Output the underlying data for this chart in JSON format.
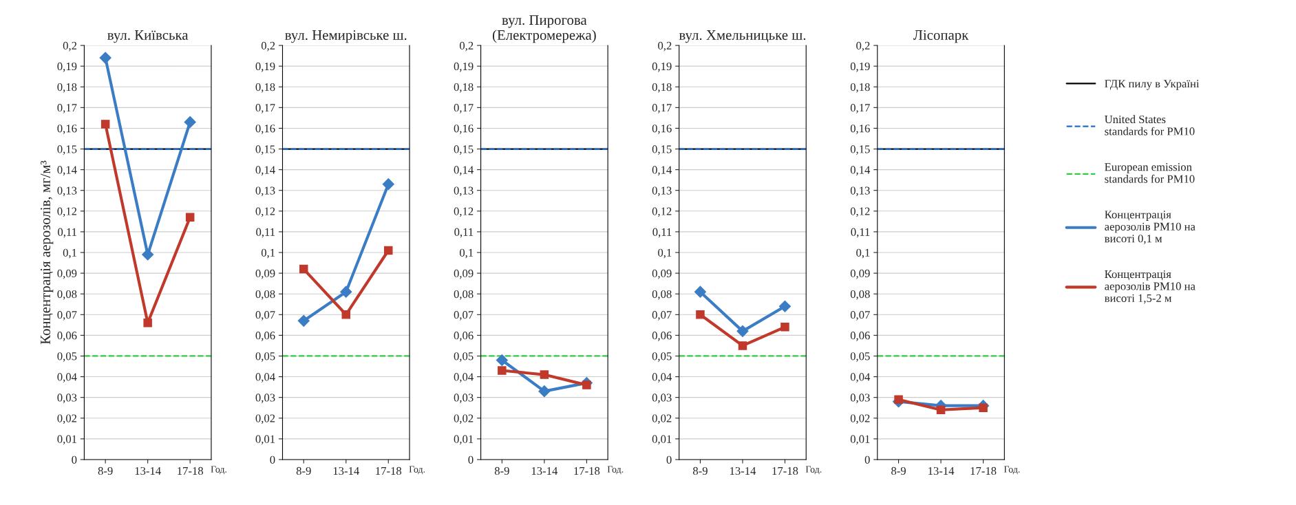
{
  "chart_data": [
    {
      "type": "line",
      "title": "вул. Київська",
      "ylabel": "Концентрація аерозолів, мг/м³",
      "xlabel": "Год.",
      "categories": [
        "8-9",
        "13-14",
        "17-18"
      ],
      "ylim": [
        0,
        0.2
      ],
      "yticks": [
        0,
        {
          "value": 0.01,
          "label": "0,01"
        },
        {
          "value": 0.02,
          "label": "0,02"
        },
        {
          "value": 0.03,
          "label": "0,03"
        },
        {
          "value": 0.04,
          "label": "0,04"
        },
        {
          "value": 0.05,
          "label": "0,05"
        },
        {
          "value": 0.06,
          "label": "0,06"
        },
        {
          "value": 0.07,
          "label": "0,07"
        },
        {
          "value": 0.08,
          "label": "0,08"
        },
        {
          "value": 0.09,
          "label": "0,09"
        },
        {
          "value": 0.1,
          "label": "0,1"
        },
        {
          "value": 0.11,
          "label": "0,11"
        },
        {
          "value": 0.12,
          "label": "0,12"
        },
        {
          "value": 0.13,
          "label": "0,13"
        },
        {
          "value": 0.14,
          "label": "0,14"
        },
        {
          "value": 0.15,
          "label": "0,15"
        },
        {
          "value": 0.16,
          "label": "0,16"
        },
        {
          "value": 0.17,
          "label": "0,17"
        },
        {
          "value": 0.18,
          "label": "0,18"
        },
        {
          "value": 0.19,
          "label": "0,19"
        },
        {
          "value": 0.2,
          "label": "0,2"
        }
      ],
      "grid": "y",
      "legend": false,
      "ref_lines": [
        {
          "axis": "y",
          "value": 0.15,
          "color": "#000000",
          "line_style": "solid"
        },
        {
          "axis": "y",
          "value": 0.15,
          "color": "#1f6fd0",
          "line_style": "dashed"
        },
        {
          "axis": "y",
          "value": 0.05,
          "color": "#2ecc40",
          "line_style": "dashed"
        }
      ],
      "series": [
        {
          "color": "#3b7dc4",
          "marker": "diamond",
          "values": [
            0.194,
            0.099,
            0.163
          ]
        },
        {
          "color": "#c0392b",
          "marker": "square",
          "values": [
            0.162,
            0.066,
            0.117
          ]
        }
      ]
    },
    {
      "type": "line",
      "title": "вул. Немирівське ш.",
      "xlabel": "Год.",
      "categories": [
        "8-9",
        "13-14",
        "17-18"
      ],
      "ylim": [
        0,
        0.2
      ],
      "yticks": [
        0,
        {
          "value": 0.01,
          "label": "0,01"
        },
        {
          "value": 0.02,
          "label": "0,02"
        },
        {
          "value": 0.03,
          "label": "0,03"
        },
        {
          "value": 0.04,
          "label": "0,04"
        },
        {
          "value": 0.05,
          "label": "0,05"
        },
        {
          "value": 0.06,
          "label": "0,06"
        },
        {
          "value": 0.07,
          "label": "0,07"
        },
        {
          "value": 0.08,
          "label": "0,08"
        },
        {
          "value": 0.09,
          "label": "0,09"
        },
        {
          "value": 0.1,
          "label": "0,1"
        },
        {
          "value": 0.11,
          "label": "0,11"
        },
        {
          "value": 0.12,
          "label": "0,12"
        },
        {
          "value": 0.13,
          "label": "0,13"
        },
        {
          "value": 0.14,
          "label": "0,14"
        },
        {
          "value": 0.15,
          "label": "0,15"
        },
        {
          "value": 0.16,
          "label": "0,16"
        },
        {
          "value": 0.17,
          "label": "0,17"
        },
        {
          "value": 0.18,
          "label": "0,18"
        },
        {
          "value": 0.19,
          "label": "0,19"
        },
        {
          "value": 0.2,
          "label": "0,2"
        }
      ],
      "grid": "y",
      "legend": false,
      "ref_lines": [
        {
          "axis": "y",
          "value": 0.15,
          "color": "#000000",
          "line_style": "solid"
        },
        {
          "axis": "y",
          "value": 0.15,
          "color": "#1f6fd0",
          "line_style": "dashed"
        },
        {
          "axis": "y",
          "value": 0.05,
          "color": "#2ecc40",
          "line_style": "dashed"
        }
      ],
      "series": [
        {
          "color": "#3b7dc4",
          "marker": "diamond",
          "values": [
            0.067,
            0.081,
            0.133
          ]
        },
        {
          "color": "#c0392b",
          "marker": "square",
          "values": [
            0.092,
            0.07,
            0.101
          ]
        }
      ]
    },
    {
      "type": "line",
      "title": "вул. Пирогова\n(Електромережа)",
      "xlabel": "Год.",
      "categories": [
        "8-9",
        "13-14",
        "17-18"
      ],
      "ylim": [
        0,
        0.2
      ],
      "yticks": [
        0,
        {
          "value": 0.01,
          "label": "0,01"
        },
        {
          "value": 0.02,
          "label": "0,02"
        },
        {
          "value": 0.03,
          "label": "0,03"
        },
        {
          "value": 0.04,
          "label": "0,04"
        },
        {
          "value": 0.05,
          "label": "0,05"
        },
        {
          "value": 0.06,
          "label": "0,06"
        },
        {
          "value": 0.07,
          "label": "0,07"
        },
        {
          "value": 0.08,
          "label": "0,08"
        },
        {
          "value": 0.09,
          "label": "0,09"
        },
        {
          "value": 0.1,
          "label": "0,1"
        },
        {
          "value": 0.11,
          "label": "0,11"
        },
        {
          "value": 0.12,
          "label": "0,12"
        },
        {
          "value": 0.13,
          "label": "0,13"
        },
        {
          "value": 0.14,
          "label": "0,14"
        },
        {
          "value": 0.15,
          "label": "0,15"
        },
        {
          "value": 0.16,
          "label": "0,16"
        },
        {
          "value": 0.17,
          "label": "0,17"
        },
        {
          "value": 0.18,
          "label": "0,18"
        },
        {
          "value": 0.19,
          "label": "0,19"
        },
        {
          "value": 0.2,
          "label": "0,2"
        }
      ],
      "grid": "y",
      "legend": false,
      "ref_lines": [
        {
          "axis": "y",
          "value": 0.15,
          "color": "#000000",
          "line_style": "solid"
        },
        {
          "axis": "y",
          "value": 0.15,
          "color": "#1f6fd0",
          "line_style": "dashed"
        },
        {
          "axis": "y",
          "value": 0.05,
          "color": "#2ecc40",
          "line_style": "dashed"
        }
      ],
      "series": [
        {
          "color": "#3b7dc4",
          "marker": "diamond",
          "values": [
            0.048,
            0.033,
            0.037
          ]
        },
        {
          "color": "#c0392b",
          "marker": "square",
          "values": [
            0.043,
            0.041,
            0.036
          ]
        }
      ]
    },
    {
      "type": "line",
      "title": "вул. Хмельницьке ш.",
      "xlabel": "Год.",
      "categories": [
        "8-9",
        "13-14",
        "17-18"
      ],
      "ylim": [
        0,
        0.2
      ],
      "yticks": [
        0,
        {
          "value": 0.01,
          "label": "0,01"
        },
        {
          "value": 0.02,
          "label": "0,02"
        },
        {
          "value": 0.03,
          "label": "0,03"
        },
        {
          "value": 0.04,
          "label": "0,04"
        },
        {
          "value": 0.05,
          "label": "0,05"
        },
        {
          "value": 0.06,
          "label": "0,06"
        },
        {
          "value": 0.07,
          "label": "0,07"
        },
        {
          "value": 0.08,
          "label": "0,08"
        },
        {
          "value": 0.09,
          "label": "0,09"
        },
        {
          "value": 0.1,
          "label": "0,1"
        },
        {
          "value": 0.11,
          "label": "0,11"
        },
        {
          "value": 0.12,
          "label": "0,12"
        },
        {
          "value": 0.13,
          "label": "0,13"
        },
        {
          "value": 0.14,
          "label": "0,14"
        },
        {
          "value": 0.15,
          "label": "0,15"
        },
        {
          "value": 0.16,
          "label": "0,16"
        },
        {
          "value": 0.17,
          "label": "0,17"
        },
        {
          "value": 0.18,
          "label": "0,18"
        },
        {
          "value": 0.19,
          "label": "0,19"
        },
        {
          "value": 0.2,
          "label": "0,2"
        }
      ],
      "grid": "y",
      "legend": false,
      "ref_lines": [
        {
          "axis": "y",
          "value": 0.15,
          "color": "#000000",
          "line_style": "solid"
        },
        {
          "axis": "y",
          "value": 0.15,
          "color": "#1f6fd0",
          "line_style": "dashed"
        },
        {
          "axis": "y",
          "value": 0.05,
          "color": "#2ecc40",
          "line_style": "dashed"
        }
      ],
      "series": [
        {
          "color": "#3b7dc4",
          "marker": "diamond",
          "values": [
            0.081,
            0.062,
            0.074
          ]
        },
        {
          "color": "#c0392b",
          "marker": "square",
          "values": [
            0.07,
            0.055,
            0.064
          ]
        }
      ]
    },
    {
      "type": "line",
      "title": "Лісопарк",
      "xlabel": "Год.",
      "categories": [
        "8-9",
        "13-14",
        "17-18"
      ],
      "ylim": [
        0,
        0.2
      ],
      "yticks": [
        0,
        {
          "value": 0.01,
          "label": "0,01"
        },
        {
          "value": 0.02,
          "label": "0,02"
        },
        {
          "value": 0.03,
          "label": "0,03"
        },
        {
          "value": 0.04,
          "label": "0,04"
        },
        {
          "value": 0.05,
          "label": "0,05"
        },
        {
          "value": 0.06,
          "label": "0,06"
        },
        {
          "value": 0.07,
          "label": "0,07"
        },
        {
          "value": 0.08,
          "label": "0,08"
        },
        {
          "value": 0.09,
          "label": "0,09"
        },
        {
          "value": 0.1,
          "label": "0,1"
        },
        {
          "value": 0.11,
          "label": "0,11"
        },
        {
          "value": 0.12,
          "label": "0,12"
        },
        {
          "value": 0.13,
          "label": "0,13"
        },
        {
          "value": 0.14,
          "label": "0,14"
        },
        {
          "value": 0.15,
          "label": "0,15"
        },
        {
          "value": 0.16,
          "label": "0,16"
        },
        {
          "value": 0.17,
          "label": "0,17"
        },
        {
          "value": 0.18,
          "label": "0,18"
        },
        {
          "value": 0.19,
          "label": "0,19"
        },
        {
          "value": 0.2,
          "label": "0,2"
        }
      ],
      "grid": "y",
      "legend": "right",
      "ref_lines": [
        {
          "axis": "y",
          "value": 0.15,
          "color": "#000000",
          "line_style": "solid",
          "label": "ГДК пилу в Україні"
        },
        {
          "axis": "y",
          "value": 0.15,
          "color": "#1f6fd0",
          "line_style": "dashed",
          "label": "United States\nstandards for PM10"
        },
        {
          "axis": "y",
          "value": 0.05,
          "color": "#2ecc40",
          "line_style": "dashed",
          "label": "European emission\nstandards for PM10"
        }
      ],
      "series": [
        {
          "name": "Концентрація\nаерозолів PM10 на\nвисоті 0,1 м",
          "color": "#3b7dc4",
          "marker": "diamond",
          "values": [
            0.028,
            0.026,
            0.026
          ]
        },
        {
          "name": "Концентрація\nаерозолів PM10 на\nвисоті 1,5-2 м",
          "color": "#c0392b",
          "marker": "square",
          "values": [
            0.029,
            0.024,
            0.025
          ]
        }
      ]
    }
  ]
}
